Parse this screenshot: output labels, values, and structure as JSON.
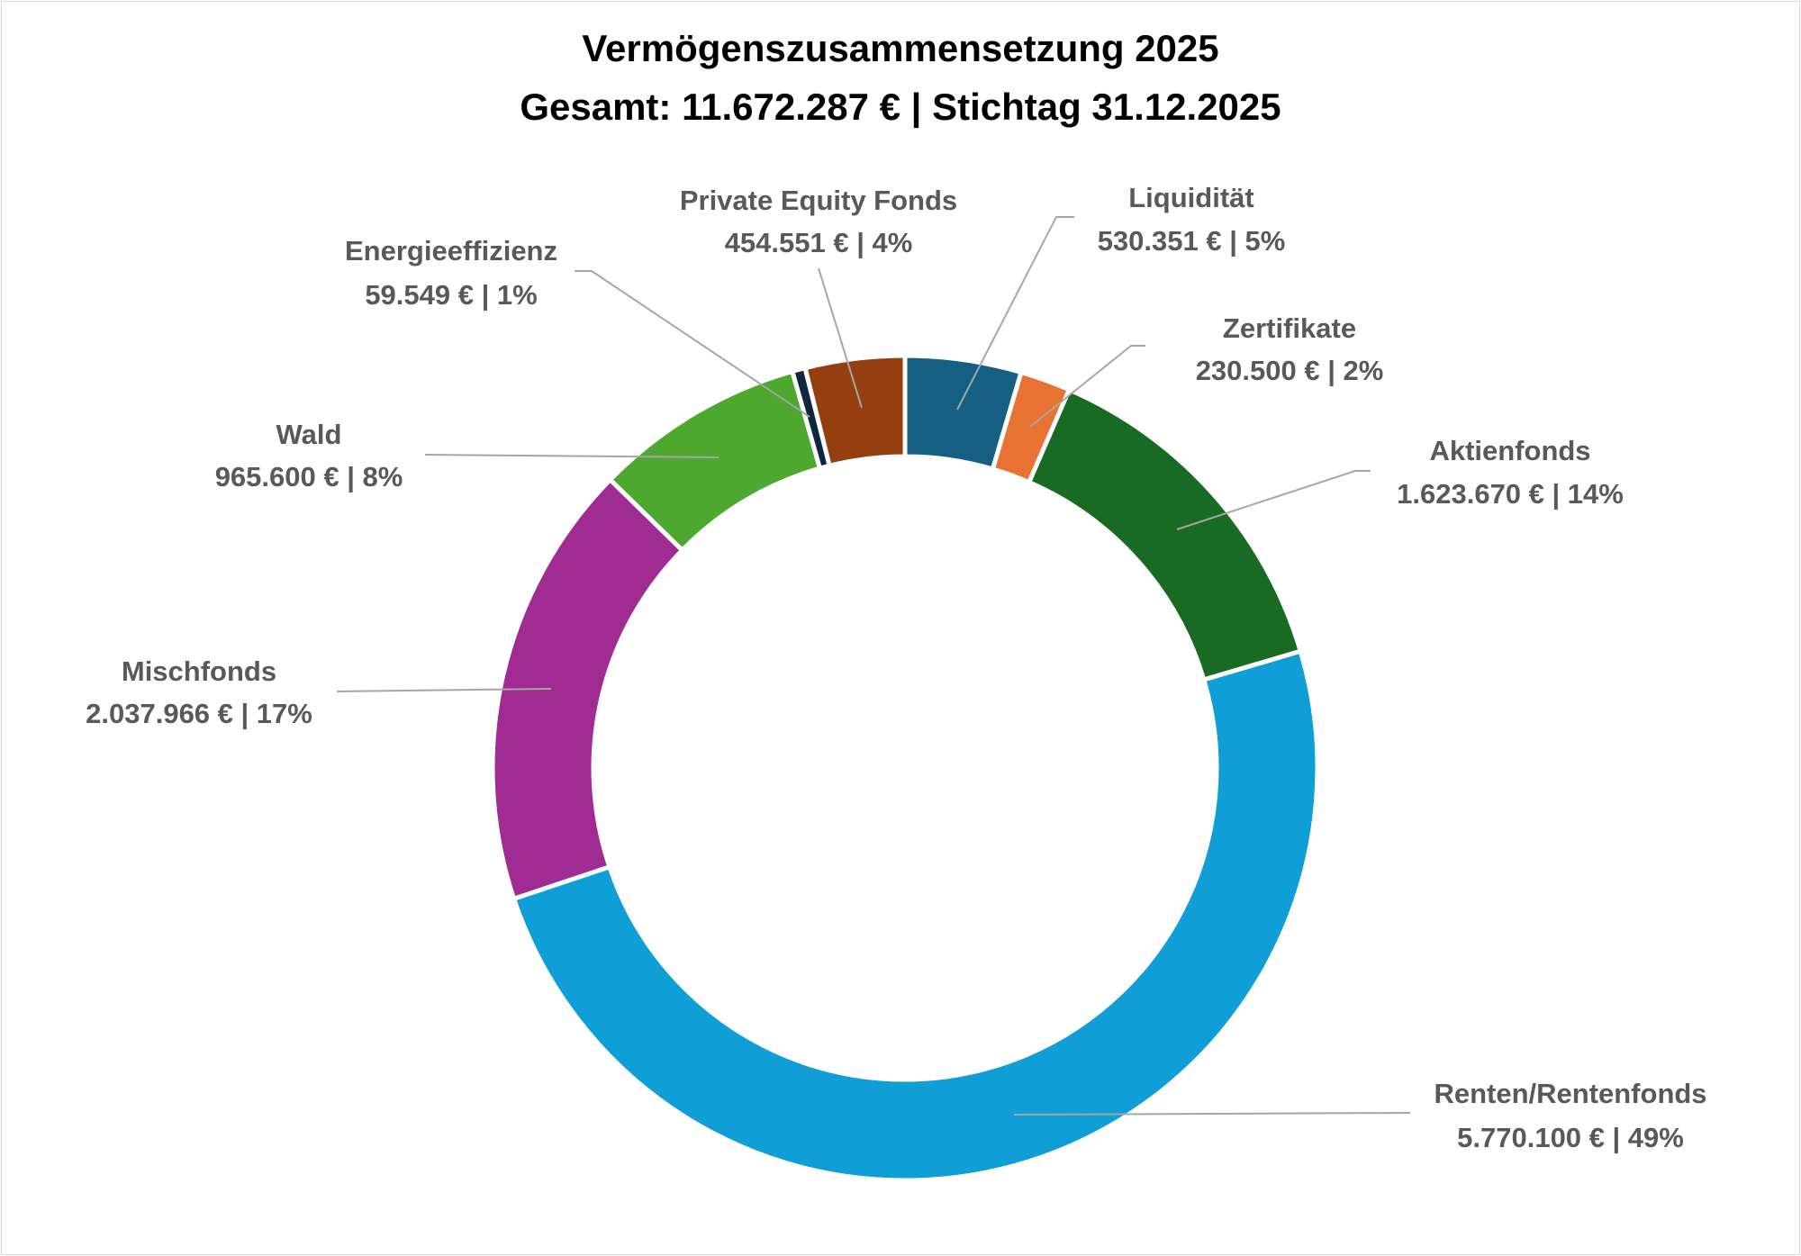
{
  "chart_data": {
    "type": "pie",
    "variant": "doughnut",
    "title": "Vermögenszusammensetzung 2025",
    "subtitle": "Gesamt: 11.672.287 €  | Stichtag 31.12.2025",
    "total": 11672287,
    "currency": "€",
    "slices": [
      {
        "name": "Liquidität",
        "value": 530351,
        "label": "530.351 € | 5%",
        "color": "#156082"
      },
      {
        "name": "Zertifikate",
        "value": 230500,
        "label": "230.500 € | 2%",
        "color": "#e97132"
      },
      {
        "name": "Aktienfonds",
        "value": 1623670,
        "label": "1.623.670 € | 14%",
        "color": "#196b24"
      },
      {
        "name": "Renten/Rentenfonds",
        "value": 5770100,
        "label": "5.770.100 € | 49%",
        "color": "#0f9ed5"
      },
      {
        "name": "Mischfonds",
        "value": 2037966,
        "label": "2.037.966 € | 17%",
        "color": "#a02b93"
      },
      {
        "name": "Wald",
        "value": 965600,
        "label": "965.600 € | 8%",
        "color": "#4ea72e"
      },
      {
        "name": "Energieeffizienz",
        "value": 59549,
        "label": "59.549 €  | 1%",
        "color": "#0e2841"
      },
      {
        "name": "Private Equity Fonds",
        "value": 454551,
        "label": "454.551 € | 4%",
        "color": "#953f10"
      }
    ],
    "legend": "none",
    "leader_line_color": "#a6a6a6",
    "label_color": "#595959"
  }
}
